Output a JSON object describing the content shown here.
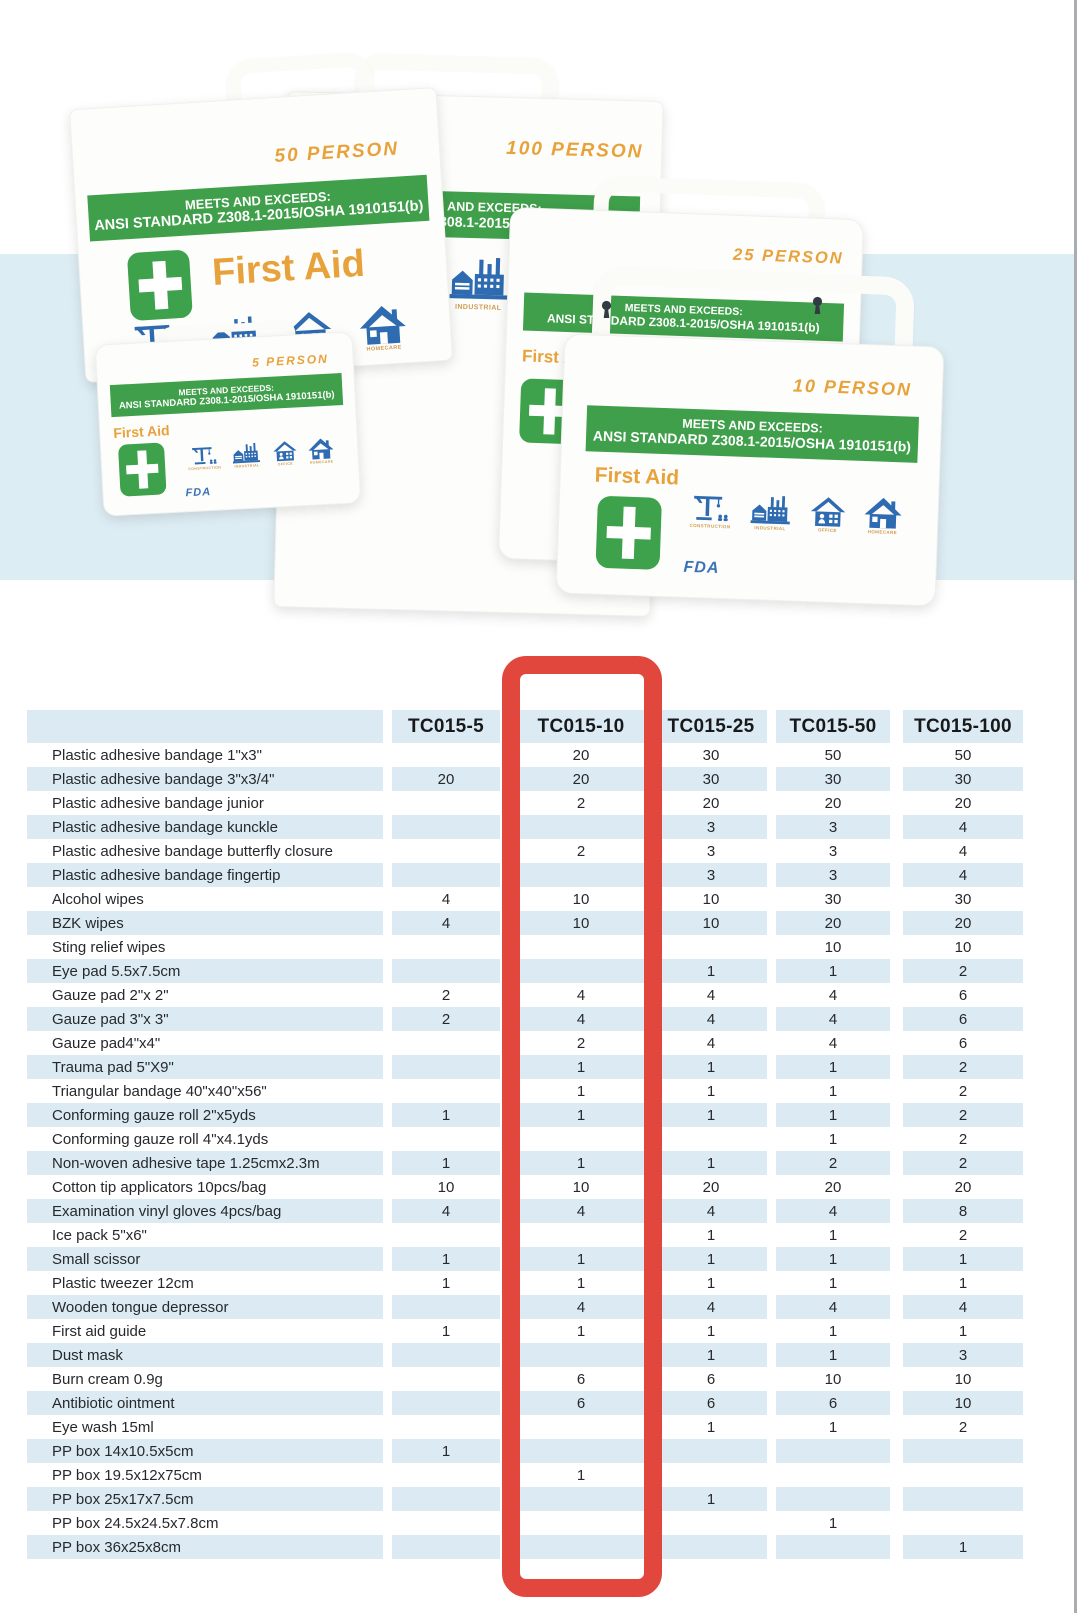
{
  "photo": {
    "band_color": "#ddedf4",
    "standards_line1": "MEETS AND EXCEEDS:",
    "standards_line2": "ANSI STANDARD Z308.1-2015/OSHA 1910151(b)",
    "brand": "First Aid",
    "fda_label": "FDA",
    "icon_captions": [
      "CONSTRUCTION",
      "INDUSTRIAL",
      "OFFICE",
      "HOMECARE"
    ],
    "boxes": {
      "b100": {
        "person": "100 PERSON"
      },
      "b50": {
        "person": "50 PERSON"
      },
      "b25": {
        "person": "25 PERSON"
      },
      "b10": {
        "person": "10 PERSON"
      },
      "b5": {
        "person": "5 PERSON"
      }
    },
    "colors": {
      "banner_green": "#3f9f4a",
      "cross_green": "#3ea24c",
      "orange": "#e8a23b",
      "caption_orange": "#cf9c52",
      "icon_blue": "#2e6bb1",
      "fda_blue": "#3a72b8"
    }
  },
  "highlight": {
    "highlighted_column": "TC015-10",
    "color": "#e2473e"
  },
  "table": {
    "columns": [
      "TC015-5",
      "TC015-10",
      "TC015-25",
      "TC015-50",
      "TC015-100"
    ],
    "rows": [
      {
        "label": "Plastic adhesive bandage 1\"x3\"",
        "values": [
          "",
          "20",
          "30",
          "50",
          "50"
        ]
      },
      {
        "label": "Plastic adhesive bandage 3\"x3/4\"",
        "values": [
          "20",
          "20",
          "30",
          "30",
          "30"
        ]
      },
      {
        "label": "Plastic adhesive bandage junior",
        "values": [
          "",
          "2",
          "20",
          "20",
          "20"
        ]
      },
      {
        "label": "Plastic adhesive bandage kunckle",
        "values": [
          "",
          "",
          "3",
          "3",
          "4"
        ]
      },
      {
        "label": "Plastic adhesive bandage butterfly closure",
        "values": [
          "",
          "2",
          "3",
          "3",
          "4"
        ]
      },
      {
        "label": "Plastic adhesive bandage fingertip",
        "values": [
          "",
          "",
          "3",
          "3",
          "4"
        ]
      },
      {
        "label": "Alcohol wipes",
        "values": [
          "4",
          "10",
          "10",
          "30",
          "30"
        ]
      },
      {
        "label": "BZK wipes",
        "values": [
          "4",
          "10",
          "10",
          "20",
          "20"
        ]
      },
      {
        "label": "Sting relief wipes",
        "values": [
          "",
          "",
          "",
          "10",
          "10"
        ]
      },
      {
        "label": "Eye pad 5.5x7.5cm",
        "values": [
          "",
          "",
          "1",
          "1",
          "2"
        ]
      },
      {
        "label": "Gauze pad 2\"x 2\"",
        "values": [
          "2",
          "4",
          "4",
          "4",
          "6"
        ]
      },
      {
        "label": "Gauze pad 3\"x 3\"",
        "values": [
          "2",
          "4",
          "4",
          "4",
          "6"
        ]
      },
      {
        "label": "Gauze pad4\"x4\"",
        "values": [
          "",
          "2",
          "4",
          "4",
          "6"
        ]
      },
      {
        "label": "Trauma pad 5\"X9\"",
        "values": [
          "",
          "1",
          "1",
          "1",
          "2"
        ]
      },
      {
        "label": "Triangular bandage 40\"x40\"x56\"",
        "values": [
          "",
          "1",
          "1",
          "1",
          "2"
        ]
      },
      {
        "label": "Conforming gauze roll 2\"x5yds",
        "values": [
          "1",
          "1",
          "1",
          "1",
          "2"
        ]
      },
      {
        "label": "Conforming gauze roll 4\"x4.1yds",
        "values": [
          "",
          "",
          "",
          "1",
          "2"
        ]
      },
      {
        "label": "Non-woven adhesive tape 1.25cmx2.3m",
        "values": [
          "1",
          "1",
          "1",
          "2",
          "2"
        ]
      },
      {
        "label": "Cotton tip applicators 10pcs/bag",
        "values": [
          "10",
          "10",
          "20",
          "20",
          "20"
        ]
      },
      {
        "label": "Examination vinyl gloves 4pcs/bag",
        "values": [
          "4",
          "4",
          "4",
          "4",
          "8"
        ]
      },
      {
        "label": "Ice pack 5\"x6\"",
        "values": [
          "",
          "",
          "1",
          "1",
          "2"
        ]
      },
      {
        "label": "Small scissor",
        "values": [
          "1",
          "1",
          "1",
          "1",
          "1"
        ]
      },
      {
        "label": "Plastic tweezer 12cm",
        "values": [
          "1",
          "1",
          "1",
          "1",
          "1"
        ]
      },
      {
        "label": "Wooden tongue depressor",
        "values": [
          "",
          "4",
          "4",
          "4",
          "4"
        ]
      },
      {
        "label": "First aid guide",
        "values": [
          "1",
          "1",
          "1",
          "1",
          "1"
        ]
      },
      {
        "label": "Dust mask",
        "values": [
          "",
          "",
          "1",
          "1",
          "3"
        ]
      },
      {
        "label": "Burn cream 0.9g",
        "values": [
          "",
          "6",
          "6",
          "10",
          "10"
        ]
      },
      {
        "label": "Antibiotic ointment",
        "values": [
          "",
          "6",
          "6",
          "6",
          "10"
        ]
      },
      {
        "label": "Eye wash 15ml",
        "values": [
          "",
          "",
          "1",
          "1",
          "2"
        ]
      },
      {
        "label": "PP box 14x10.5x5cm",
        "values": [
          "1",
          "",
          "",
          "",
          ""
        ]
      },
      {
        "label": "PP box 19.5x12x75cm",
        "values": [
          "",
          "1",
          "",
          "",
          ""
        ]
      },
      {
        "label": "PP box 25x17x7.5cm",
        "values": [
          "",
          "",
          "1",
          "",
          ""
        ]
      },
      {
        "label": "PP box 24.5x24.5x7.8cm",
        "values": [
          "",
          "",
          "",
          "1",
          ""
        ]
      },
      {
        "label": "PP box 36x25x8cm",
        "values": [
          "",
          "",
          "",
          "",
          "1"
        ]
      }
    ]
  }
}
